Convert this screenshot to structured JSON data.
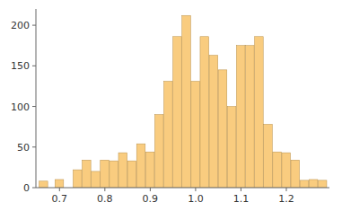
{
  "chart_data": {
    "type": "bar",
    "x": [
      0.655,
      0.67,
      0.69,
      0.71,
      0.73,
      0.75,
      0.77,
      0.79,
      0.81,
      0.83,
      0.85,
      0.87,
      0.89,
      0.91,
      0.93,
      0.95,
      0.97,
      0.99,
      1.01,
      1.03,
      1.05,
      1.07,
      1.09,
      1.11,
      1.13,
      1.15,
      1.17,
      1.19,
      1.21,
      1.23,
      1.25,
      1.27
    ],
    "bar_width": 0.019,
    "values": [
      8,
      0,
      10,
      0,
      22,
      34,
      20,
      34,
      33,
      43,
      33,
      54,
      44,
      90,
      131,
      186,
      212,
      131,
      186,
      163,
      145,
      100,
      175,
      175,
      186,
      78,
      44,
      43,
      34,
      9,
      10,
      9
    ],
    "color": "#F9CC7F",
    "xlim": [
      0.648,
      1.295
    ],
    "ylim": [
      0,
      220
    ],
    "xticks": [
      0.7,
      0.8,
      0.9,
      {
        "value": 1.0,
        "label": "1.0"
      },
      1.1,
      1.2
    ],
    "yticks": [
      0,
      50,
      100,
      150,
      200
    ],
    "grid": false
  }
}
